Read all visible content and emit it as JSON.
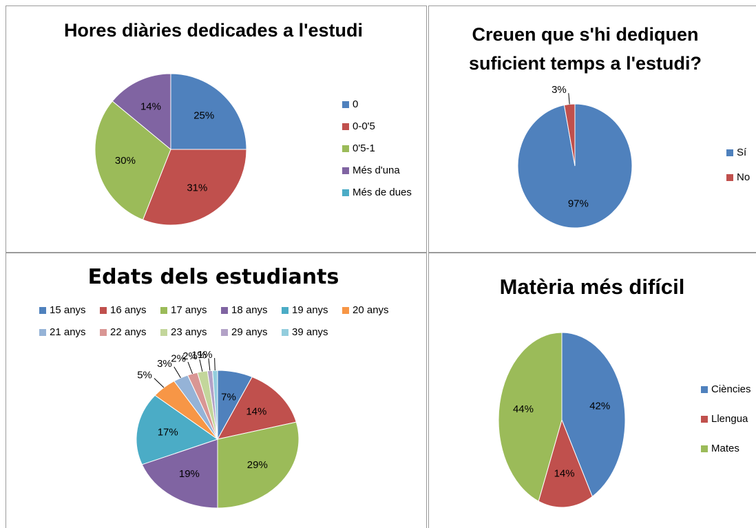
{
  "chart_data": [
    {
      "type": "pie",
      "title": "Hores diàries dedicades a l'estudi",
      "categories": [
        "0",
        "0-0'5",
        "0'5-1",
        "Més d'una",
        "Més de dues"
      ],
      "values": [
        25,
        31,
        30,
        14,
        0
      ],
      "value_labels": [
        "25%",
        "31%",
        "30%",
        "14%",
        null
      ],
      "colors": [
        "#4f81bd",
        "#c0504d",
        "#9bbb59",
        "#8064a2",
        "#4bacc6"
      ],
      "legend": "right"
    },
    {
      "type": "pie",
      "title": "Creuen que s'hi dediquen suficient temps a l'estudi?",
      "categories": [
        "Sí",
        "No"
      ],
      "values": [
        97,
        3
      ],
      "value_labels": [
        "97%",
        "3%"
      ],
      "colors": [
        "#4f81bd",
        "#c0504d"
      ],
      "legend": "right"
    },
    {
      "type": "pie",
      "title": "Edats dels estudiants",
      "categories": [
        "15 anys",
        "16 anys",
        "17 anys",
        "18 anys",
        "19 anys",
        "20 anys",
        "21 anys",
        "22 anys",
        "23 anys",
        "29 anys",
        "39 anys"
      ],
      "values": [
        7,
        14,
        29,
        19,
        17,
        5,
        3,
        2,
        2,
        1,
        1
      ],
      "value_labels": [
        "7%",
        "14%",
        "29%",
        "19%",
        "17%",
        "5%",
        "3%",
        "2%",
        "2%",
        "1%",
        "1%"
      ],
      "colors": [
        "#4f81bd",
        "#c0504d",
        "#9bbb59",
        "#8064a2",
        "#4bacc6",
        "#f79646",
        "#95b3d7",
        "#d99694",
        "#c3d69b",
        "#b3a2c7",
        "#93cddd"
      ],
      "legend": "top"
    },
    {
      "type": "pie",
      "title": "Matèria més difícil",
      "categories": [
        "Ciències",
        "Llengua",
        "Mates"
      ],
      "values": [
        42,
        14,
        44
      ],
      "value_labels": [
        "42%",
        "14%",
        "44%"
      ],
      "colors": [
        "#4f81bd",
        "#c0504d",
        "#9bbb59"
      ],
      "legend": "right"
    }
  ]
}
